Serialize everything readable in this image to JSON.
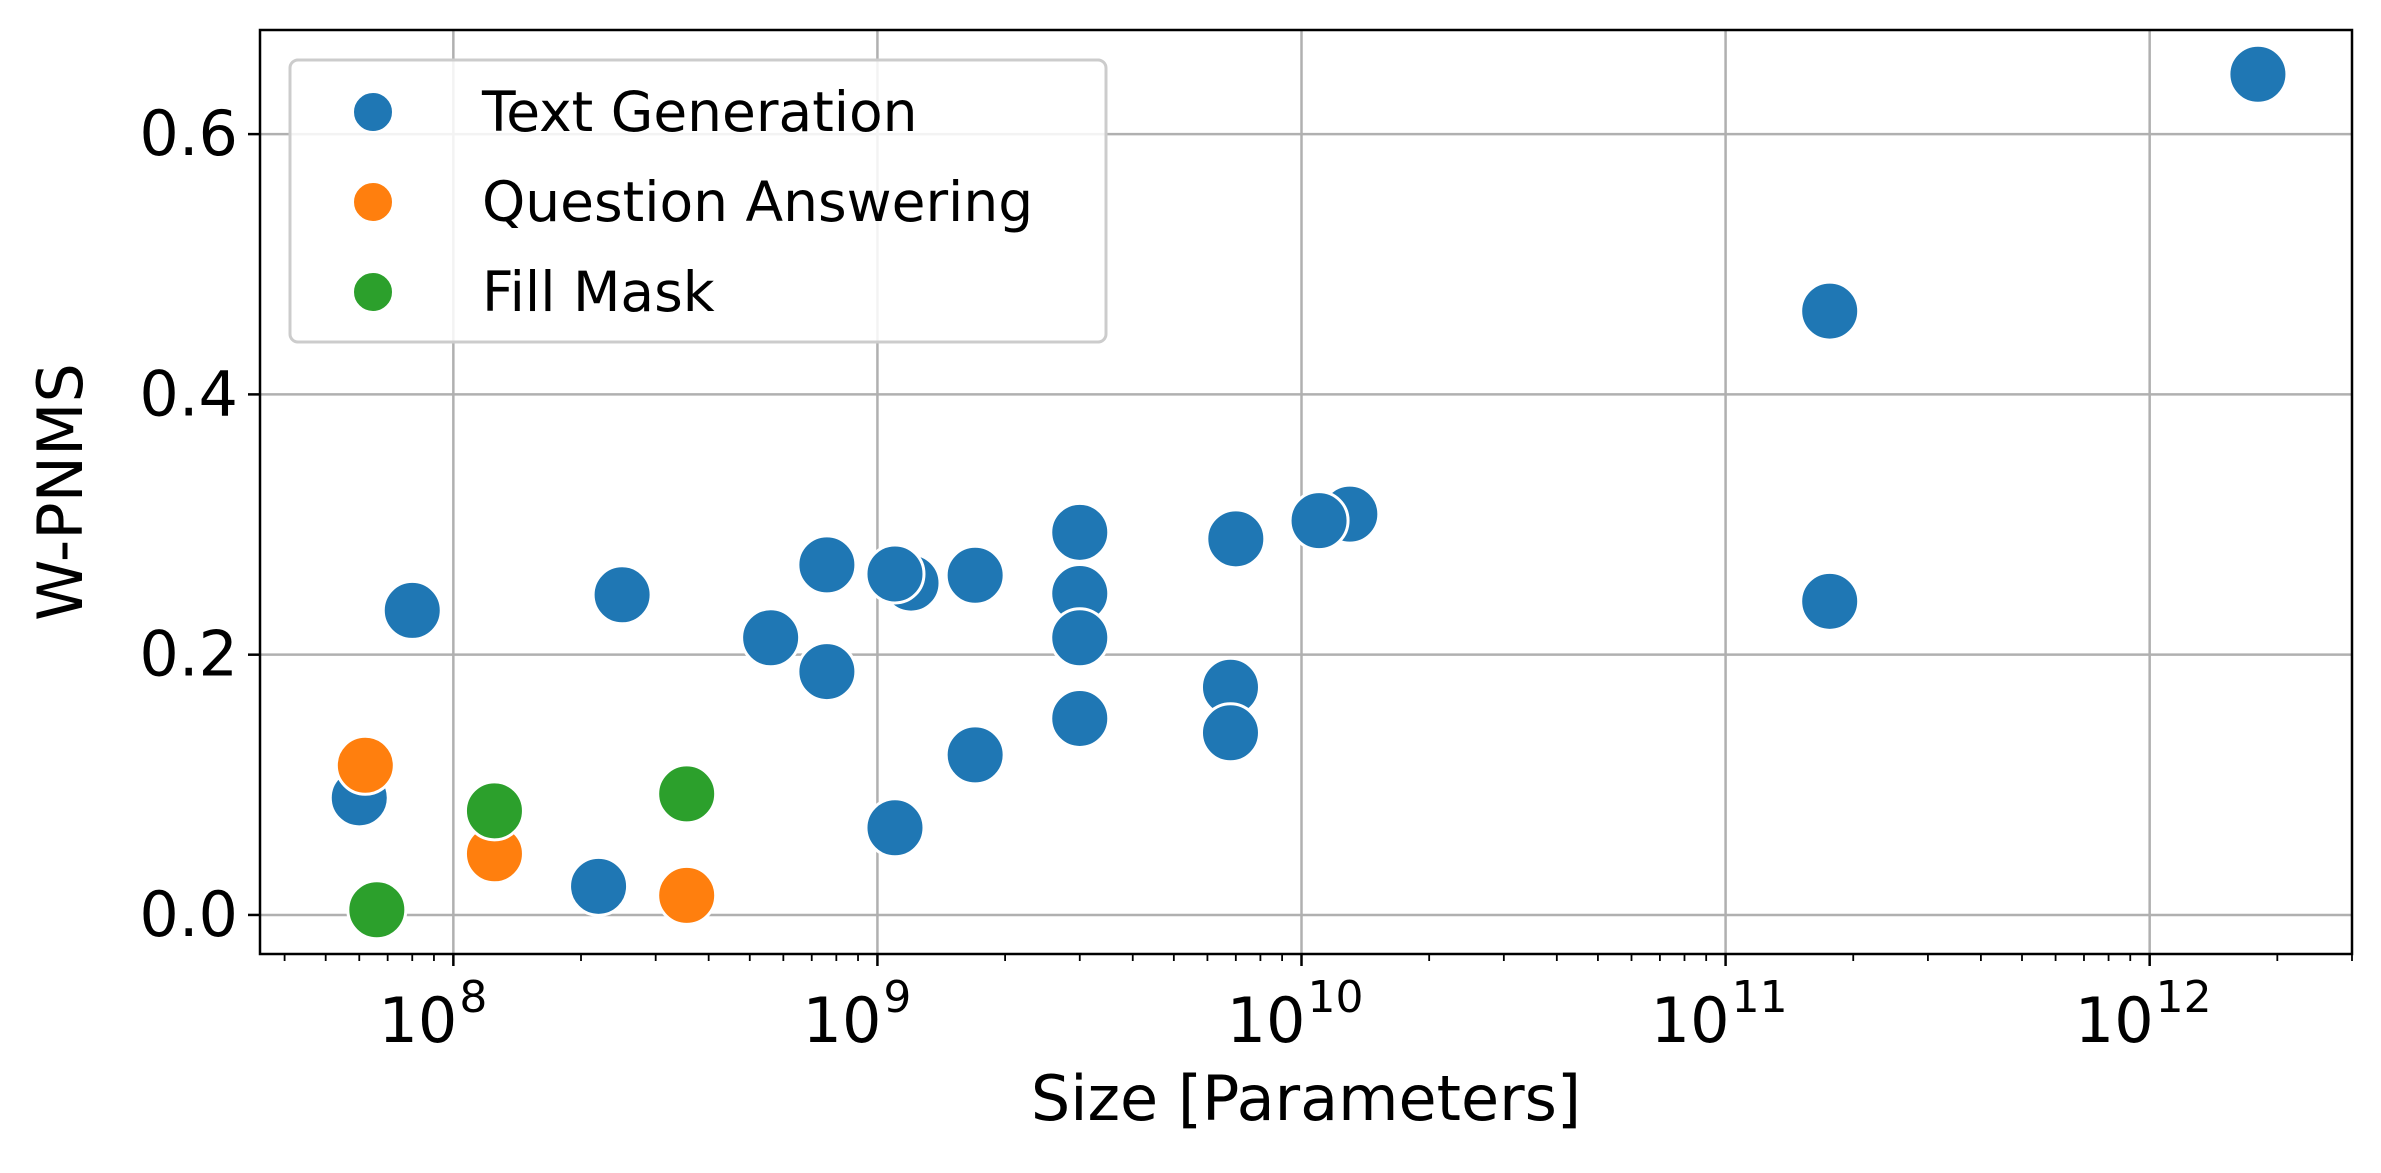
{
  "chart_data": {
    "type": "scatter",
    "xlabel": "Size [Parameters]",
    "ylabel": "W-PNMS",
    "xscale": "log",
    "xlim": [
      35000000,
      3000000000000
    ],
    "ylim": [
      -0.03,
      0.68
    ],
    "grid": true,
    "legend_position": "top-left",
    "x_major_ticks": [
      {
        "value": 100000000,
        "base": "10",
        "exponent": "8"
      },
      {
        "value": 1000000000,
        "base": "10",
        "exponent": "9"
      },
      {
        "value": 10000000000,
        "base": "10",
        "exponent": "10"
      },
      {
        "value": 100000000000,
        "base": "10",
        "exponent": "11"
      },
      {
        "value": 1000000000000,
        "base": "10",
        "exponent": "12"
      }
    ],
    "y_ticks": [
      {
        "value": 0.0,
        "label": "0.0"
      },
      {
        "value": 0.2,
        "label": "0.2"
      },
      {
        "value": 0.4,
        "label": "0.4"
      },
      {
        "value": 0.6,
        "label": "0.6"
      }
    ],
    "series": [
      {
        "name": "Text Generation",
        "color": "#1f77b4",
        "points": [
          {
            "x": 60000000,
            "y": 0.09
          },
          {
            "x": 80000000,
            "y": 0.234
          },
          {
            "x": 220000000,
            "y": 0.022
          },
          {
            "x": 250000000,
            "y": 0.246
          },
          {
            "x": 560000000,
            "y": 0.213
          },
          {
            "x": 760000000,
            "y": 0.187
          },
          {
            "x": 760000000,
            "y": 0.269
          },
          {
            "x": 1100000000,
            "y": 0.067
          },
          {
            "x": 1200000000,
            "y": 0.255
          },
          {
            "x": 1100000000,
            "y": 0.262
          },
          {
            "x": 1700000000,
            "y": 0.261
          },
          {
            "x": 1700000000,
            "y": 0.123
          },
          {
            "x": 3000000000,
            "y": 0.294
          },
          {
            "x": 3000000000,
            "y": 0.247
          },
          {
            "x": 3000000000,
            "y": 0.213
          },
          {
            "x": 3000000000,
            "y": 0.151
          },
          {
            "x": 7000000000,
            "y": 0.289
          },
          {
            "x": 6800000000,
            "y": 0.175
          },
          {
            "x": 6800000000,
            "y": 0.14
          },
          {
            "x": 13000000000,
            "y": 0.308
          },
          {
            "x": 11000000000,
            "y": 0.303
          },
          {
            "x": 176000000000,
            "y": 0.464
          },
          {
            "x": 176000000000,
            "y": 0.241
          },
          {
            "x": 1800000000000,
            "y": 0.646
          }
        ]
      },
      {
        "name": "Question Answering",
        "color": "#ff7f0e",
        "points": [
          {
            "x": 62000000,
            "y": 0.115
          },
          {
            "x": 125000000,
            "y": 0.047
          },
          {
            "x": 355000000,
            "y": 0.015
          }
        ]
      },
      {
        "name": "Fill Mask",
        "color": "#2ca02c",
        "points": [
          {
            "x": 66000000,
            "y": 0.004
          },
          {
            "x": 125000000,
            "y": 0.08
          },
          {
            "x": 355000000,
            "y": 0.093
          }
        ]
      }
    ]
  }
}
